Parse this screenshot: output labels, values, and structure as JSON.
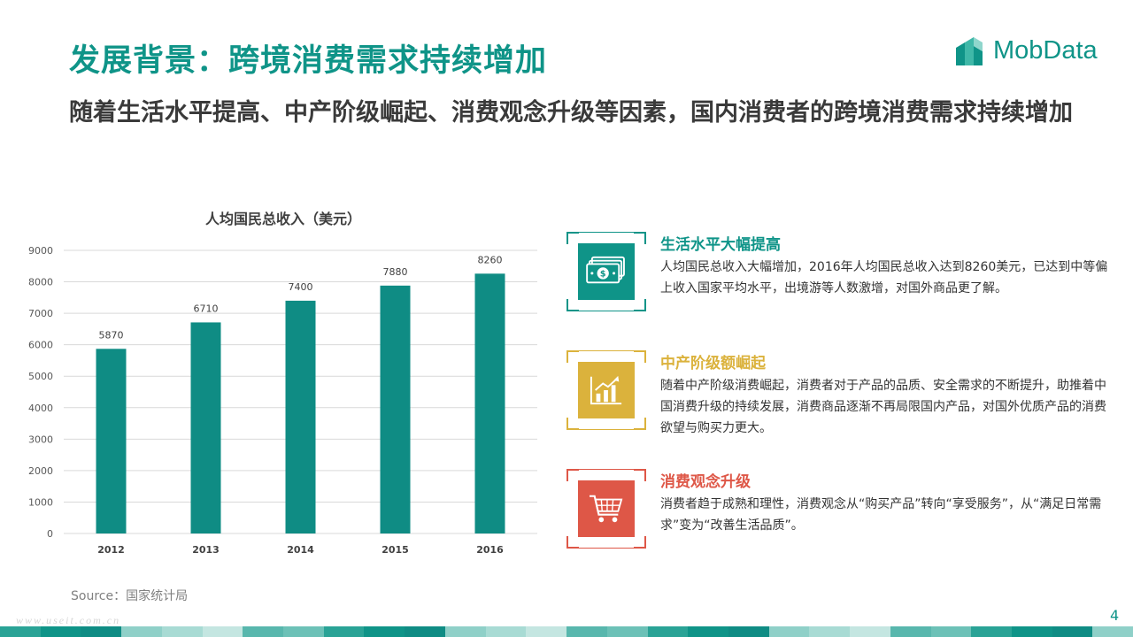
{
  "header": {
    "title": "发展背景：跨境消费需求持续增加",
    "subtitle": "随着生活水平提高、中产阶级崛起、消费观念升级等因素，国内消费者的跨境消费需求持续增加"
  },
  "brand": {
    "name": "MobData",
    "color": "#0f9488"
  },
  "chart_data": {
    "type": "bar",
    "title": "人均国民总收入（美元）",
    "categories": [
      "2012",
      "2013",
      "2014",
      "2015",
      "2016"
    ],
    "values": [
      5870,
      6710,
      7400,
      7880,
      8260
    ],
    "data_labels": [
      "5870",
      "6710",
      "7400",
      "7880",
      "8260"
    ],
    "ylim": [
      0,
      9000
    ],
    "yticks": [
      0,
      1000,
      2000,
      3000,
      4000,
      5000,
      6000,
      7000,
      8000,
      9000
    ],
    "grid": true,
    "bar_color": "#0f8c84"
  },
  "source": "Source：国家统计局",
  "watermark": "www.useit.com.cn",
  "page_number": "4",
  "features": [
    {
      "title": "生活水平大幅提高",
      "text": "人均国民总收入大幅增加，2016年人均国民总收入达到8260美元，已达到中等偏上收入国家平均水平，出境游等人数激增，对国外商品更了解。",
      "icon": "money-icon",
      "color": "#0f9488"
    },
    {
      "title": "中产阶级额崛起",
      "text": "随着中产阶级消费崛起，消费者对于产品的品质、安全需求的不断提升，助推着中国消费升级的持续发展，消费商品逐渐不再局限国内产品，对国外优质产品的消费欲望与购买力更大。",
      "icon": "growth-chart-icon",
      "color": "#dbb23c"
    },
    {
      "title": "消费观念升级",
      "text": "消费者趋于成熟和理性，消费观念从“购买产品”转向“享受服务”，从“满足日常需求”变为“改善生活品质”。",
      "icon": "shopping-cart-icon",
      "color": "#de5747"
    }
  ]
}
